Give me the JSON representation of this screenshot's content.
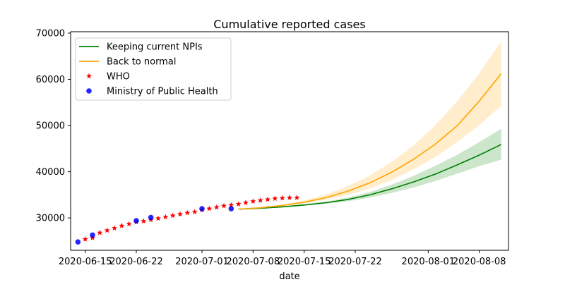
{
  "chart_data": {
    "type": "line",
    "title": "Cumulative reported cases",
    "xlabel": "date",
    "ylabel": "",
    "xlim": [
      "2020-06-13",
      "2020-08-12"
    ],
    "ylim": [
      23000,
      70300
    ],
    "x_ticks": [
      "2020-06-15",
      "2020-06-22",
      "2020-07-01",
      "2020-07-08",
      "2020-07-15",
      "2020-07-22",
      "2020-08-01",
      "2020-08-08"
    ],
    "y_ticks": [
      30000,
      40000,
      50000,
      60000,
      70000
    ],
    "grid": false,
    "legend_position": "top-left",
    "colors": {
      "keeping": "#008000",
      "back": "#ffa500",
      "who": "#ff0000",
      "ministry": "#0000ff"
    },
    "series": [
      {
        "name": "Keeping current NPIs",
        "kind": "line",
        "color": "#008000",
        "x": [
          "2020-07-06",
          "2020-07-09",
          "2020-07-12",
          "2020-07-15",
          "2020-07-18",
          "2020-07-21",
          "2020-07-24",
          "2020-07-27",
          "2020-07-30",
          "2020-08-02",
          "2020-08-05",
          "2020-08-08",
          "2020-08-11"
        ],
        "y": [
          31900,
          32100,
          32400,
          32800,
          33300,
          34000,
          35000,
          36300,
          37800,
          39500,
          41500,
          43600,
          45900
        ],
        "lower": [
          31900,
          32050,
          32300,
          32650,
          33050,
          33600,
          34400,
          35400,
          36600,
          38000,
          39600,
          41200,
          42600
        ],
        "upper": [
          31900,
          32150,
          32500,
          32950,
          33550,
          34400,
          35600,
          37200,
          39100,
          41300,
          43700,
          46400,
          49300
        ]
      },
      {
        "name": "Back to normal",
        "kind": "line",
        "color": "#ffa500",
        "x": [
          "2020-07-06",
          "2020-07-09",
          "2020-07-12",
          "2020-07-15",
          "2020-07-18",
          "2020-07-21",
          "2020-07-24",
          "2020-07-27",
          "2020-07-30",
          "2020-08-02",
          "2020-08-05",
          "2020-08-08",
          "2020-08-11"
        ],
        "y": [
          31900,
          32200,
          32700,
          33400,
          34400,
          35800,
          37600,
          39900,
          42700,
          46000,
          50000,
          55300,
          61200
        ],
        "lower": [
          31900,
          32100,
          32500,
          33100,
          33900,
          35000,
          36400,
          38200,
          40500,
          43200,
          46500,
          50100,
          54300
        ],
        "upper": [
          31900,
          32300,
          32900,
          33800,
          35100,
          36900,
          39200,
          42100,
          45700,
          50100,
          55300,
          61300,
          68200
        ]
      },
      {
        "name": "WHO",
        "kind": "scatter",
        "marker": "star",
        "color": "#ff0000",
        "x": [
          "2020-06-15",
          "2020-06-16",
          "2020-06-17",
          "2020-06-18",
          "2020-06-19",
          "2020-06-20",
          "2020-06-21",
          "2020-06-22",
          "2020-06-23",
          "2020-06-24",
          "2020-06-25",
          "2020-06-26",
          "2020-06-27",
          "2020-06-28",
          "2020-06-29",
          "2020-06-30",
          "2020-07-01",
          "2020-07-02",
          "2020-07-03",
          "2020-07-04",
          "2020-07-05",
          "2020-07-06",
          "2020-07-07",
          "2020-07-08",
          "2020-07-09",
          "2020-07-10",
          "2020-07-11",
          "2020-07-12",
          "2020-07-13",
          "2020-07-14"
        ],
        "y": [
          25400,
          25700,
          26800,
          27300,
          27800,
          28300,
          28700,
          29100,
          29300,
          29600,
          29900,
          30200,
          30500,
          30800,
          31100,
          31300,
          31700,
          32000,
          32300,
          32600,
          32800,
          33000,
          33300,
          33600,
          33800,
          34000,
          34200,
          34300,
          34400,
          34400
        ]
      },
      {
        "name": "Ministry of Public Health",
        "kind": "scatter",
        "marker": "circle",
        "color": "#0000ff",
        "x": [
          "2020-06-14",
          "2020-06-16",
          "2020-06-22",
          "2020-06-24",
          "2020-07-01",
          "2020-07-05"
        ],
        "y": [
          24800,
          26300,
          29400,
          30100,
          32000,
          32000
        ]
      }
    ]
  }
}
